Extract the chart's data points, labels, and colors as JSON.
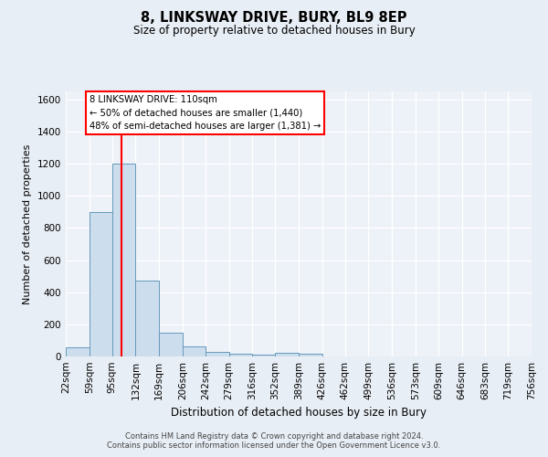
{
  "title": "8, LINKSWAY DRIVE, BURY, BL9 8EP",
  "subtitle": "Size of property relative to detached houses in Bury",
  "xlabel": "Distribution of detached houses by size in Bury",
  "ylabel": "Number of detached properties",
  "bar_color": "#ccdded",
  "bar_edge_color": "#6699bb",
  "red_line_x": 110,
  "ylim": [
    0,
    1650
  ],
  "yticks": [
    0,
    200,
    400,
    600,
    800,
    1000,
    1200,
    1400,
    1600
  ],
  "bin_edges": [
    22,
    59,
    95,
    132,
    169,
    206,
    242,
    279,
    316,
    352,
    389,
    426,
    462,
    499,
    536,
    573,
    609,
    646,
    683,
    719,
    756
  ],
  "bin_counts": [
    55,
    900,
    1200,
    470,
    150,
    60,
    30,
    18,
    10,
    20,
    15,
    0,
    0,
    0,
    0,
    0,
    0,
    0,
    0,
    0
  ],
  "annotation_title": "8 LINKSWAY DRIVE: 110sqm",
  "annotation_line1": "← 50% of detached houses are smaller (1,440)",
  "annotation_line2": "48% of semi-detached houses are larger (1,381) →",
  "footer1": "Contains HM Land Registry data © Crown copyright and database right 2024.",
  "footer2": "Contains public sector information licensed under the Open Government Licence v3.0.",
  "background_color": "#e8eef5",
  "plot_background_color": "#edf2f8"
}
